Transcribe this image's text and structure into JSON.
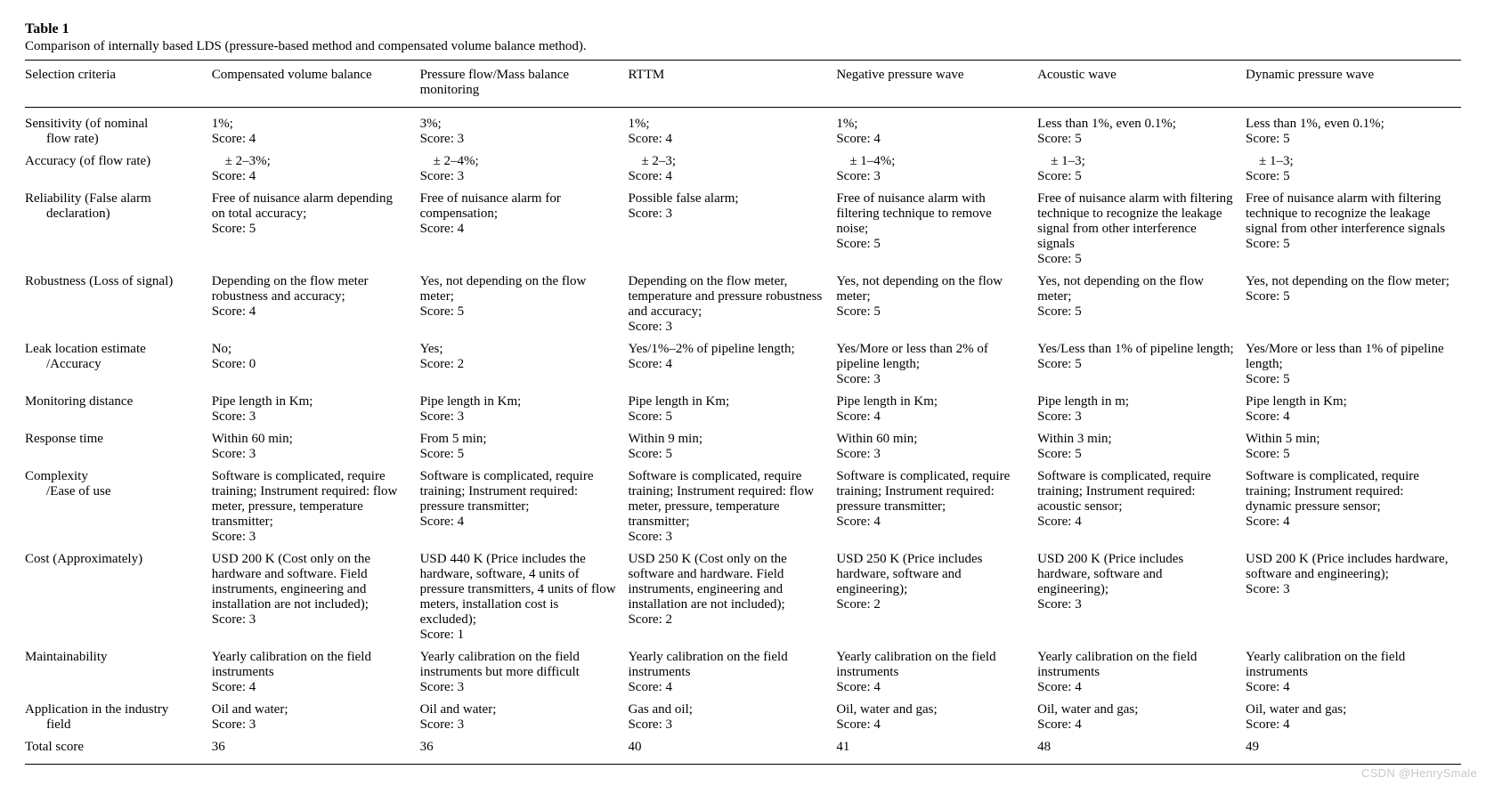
{
  "table_label": "Table 1",
  "caption": "Comparison of internally based LDS (pressure-based method and compensated volume balance method).",
  "watermark": "CSDN @HenrySmale",
  "columns": [
    "Selection criteria",
    "Compensated volume balance",
    "Pressure flow/Mass balance monitoring",
    "RTTM",
    "Negative pressure wave",
    "Acoustic wave",
    "Dynamic pressure wave"
  ],
  "rows": [
    {
      "criterion_main": "Sensitivity (of nominal",
      "criterion_sub": "flow rate)",
      "cells": [
        "1%;\nScore: 4",
        "3%;\nScore: 3",
        "1%;\nScore: 4",
        "1%;\nScore: 4",
        "Less than 1%, even 0.1%;\nScore: 5",
        "Less than 1%, even 0.1%;\nScore: 5"
      ]
    },
    {
      "criterion_main": "Accuracy (of flow rate)",
      "criterion_sub": "",
      "cells": [
        " ± 2–3%;\nScore: 4",
        " ± 2–4%;\nScore: 3",
        " ± 2–3;\nScore: 4",
        " ± 1–4%;\nScore: 3",
        " ± 1–3;\nScore: 5",
        " ± 1–3;\nScore: 5"
      ]
    },
    {
      "criterion_main": "Reliability (False alarm",
      "criterion_sub": "declaration)",
      "cells": [
        "Free of nuisance alarm depending on total accuracy;\nScore: 5",
        "Free of nuisance alarm for compensation;\nScore: 4",
        "Possible false alarm;\nScore: 3",
        "Free of nuisance alarm with filtering technique to remove noise;\nScore: 5",
        "Free of nuisance alarm with filtering technique to recognize the leakage signal from other interference signals\nScore: 5",
        "Free of nuisance alarm with filtering technique to recognize the leakage signal from other interference signals\nScore: 5"
      ]
    },
    {
      "criterion_main": "Robustness (Loss of signal)",
      "criterion_sub": "",
      "cells": [
        "Depending on the flow meter robustness and accuracy;\nScore: 4",
        "Yes, not depending on the flow meter;\nScore: 5",
        "Depending on the flow meter, temperature and pressure robustness and accuracy;\nScore: 3",
        "Yes, not depending on the flow meter;\nScore: 5",
        "Yes, not depending on the flow meter;\nScore: 5",
        "Yes, not depending on the flow meter;\nScore: 5"
      ]
    },
    {
      "criterion_main": "Leak location estimate",
      "criterion_sub": "/Accuracy",
      "cells": [
        "No;\nScore: 0",
        "Yes;\nScore: 2",
        "Yes/1%–2% of pipeline length;\nScore: 4",
        "Yes/More or less than 2% of pipeline length;\nScore: 3",
        "Yes/Less than 1% of pipeline length;\nScore: 5",
        "Yes/More or less than 1% of pipeline length;\nScore: 5"
      ]
    },
    {
      "criterion_main": "Monitoring distance",
      "criterion_sub": "",
      "cells": [
        "Pipe length in Km;\nScore: 3",
        "Pipe length in Km;\nScore: 3",
        "Pipe length in Km;\nScore: 5",
        "Pipe length in Km;\nScore: 4",
        "Pipe length in m;\nScore: 3",
        "Pipe length in Km;\nScore: 4"
      ]
    },
    {
      "criterion_main": "Response time",
      "criterion_sub": "",
      "cells": [
        "Within 60 min;\nScore: 3",
        "From 5 min;\nScore: 5",
        "Within 9 min;\nScore: 5",
        "Within 60 min;\nScore: 3",
        "Within 3 min;\nScore: 5",
        "Within 5 min;\nScore: 5"
      ]
    },
    {
      "criterion_main": "Complexity",
      "criterion_sub": "/Ease of use",
      "cells": [
        "Software is complicated, require training; Instrument required: flow meter, pressure, temperature transmitter;\nScore: 3",
        "Software is complicated, require training; Instrument required: pressure transmitter;\nScore: 4",
        "Software is complicated, require training; Instrument required: flow meter, pressure, temperature transmitter;\nScore: 3",
        "Software is complicated, require training; Instrument required: pressure transmitter;\nScore: 4",
        "Software is complicated, require training; Instrument required: acoustic sensor;\nScore: 4",
        "Software is complicated, require training; Instrument required: dynamic pressure sensor;\nScore: 4"
      ]
    },
    {
      "criterion_main": "Cost (Approximately)",
      "criterion_sub": "",
      "cells": [
        "USD 200 K (Cost only on the hardware and software. Field instruments, engineering and installation are not included);\nScore: 3",
        "USD 440 K (Price includes the hardware, software, 4 units of pressure transmitters, 4 units of flow meters, installation cost is excluded);\nScore: 1",
        "USD 250 K (Cost only on the software and hardware. Field instruments, engineering and installation are not included);\nScore: 2",
        "USD 250 K (Price includes hardware, software and engineering);\nScore: 2",
        "USD 200 K (Price includes hardware, software and engineering);\nScore: 3",
        "USD 200 K (Price includes hardware, software and engineering);\nScore: 3"
      ]
    },
    {
      "criterion_main": "Maintainability",
      "criterion_sub": "",
      "cells": [
        "Yearly calibration on the field instruments\nScore: 4",
        "Yearly calibration on the field instruments but more difficult\nScore: 3",
        "Yearly calibration on the field instruments\nScore: 4",
        "Yearly calibration on the field instruments\nScore: 4",
        "Yearly calibration on the field instruments\nScore: 4",
        "Yearly calibration on the field instruments\nScore: 4"
      ]
    },
    {
      "criterion_main": "Application in the industry",
      "criterion_sub": "field",
      "cells": [
        "Oil and water;\nScore: 3",
        "Oil and water;\nScore: 3",
        "Gas and oil;\nScore: 3",
        "Oil, water and gas;\nScore: 4",
        "Oil, water and gas;\nScore: 4",
        "Oil, water and gas;\nScore: 4"
      ]
    },
    {
      "criterion_main": "Total score",
      "criterion_sub": "",
      "cells": [
        "36",
        "36",
        "40",
        "41",
        "48",
        "49"
      ]
    }
  ]
}
